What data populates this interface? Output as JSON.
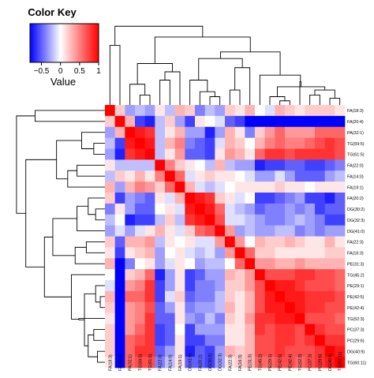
{
  "chart_data": {
    "type": "heatmap",
    "title": "",
    "color_key": {
      "title": "Color Key",
      "label": "Value",
      "range": [
        -0.8,
        1
      ],
      "ticks": [
        -0.5,
        0,
        0.5,
        1
      ],
      "tick_labels": [
        "−0.5",
        "0",
        "0.5",
        "1"
      ],
      "colors": [
        "#0000ff",
        "#ffffff",
        "#ff0000"
      ]
    },
    "columns": [
      "FA(18:3)",
      "FA(20:4)",
      "PA(32:1)",
      "TG(59:5)",
      "TG(61:5)",
      "FA(22:0)",
      "FA(14:0)",
      "FA(19:1)",
      "DG(41:0)",
      "FA(20:2)",
      "DG(30:2)",
      "DG(32:3)",
      "FA(22:3)",
      "FA(16:3)",
      "PE(31:3)",
      "TG(45:2)",
      "PE(29:1)",
      "PE(42:5)",
      "PE(42:4)",
      "TG(52:3)",
      "PC(37:3)",
      "PC(29:6)",
      "DG(40:9)",
      "TG(60:11)"
    ],
    "rows": [
      "FA(18:3)",
      "FA(20:4)",
      "PA(32:1)",
      "TG(59:5)",
      "TG(61:5)",
      "FA(22:0)",
      "FA(14:0)",
      "FA(19:1)",
      "FA(20:2)",
      "DG(30:2)",
      "DG(32:3)",
      "DG(41:0)",
      "FA(22:3)",
      "FA(16:3)",
      "PE(31:3)",
      "TG(45:2)",
      "PE(29:1)",
      "PE(42:5)",
      "PE(42:4)",
      "TG(52:3)",
      "PC(37:3)",
      "PC(29:6)",
      "DG(40:9)",
      "TG(60:11)"
    ],
    "values": [
      [
        1.0,
        0.2,
        -0.3,
        -0.2,
        -0.3,
        0.1,
        -0.2,
        0.3,
        0.2,
        -0.4,
        -0.2,
        -0.3,
        0.2,
        0.1,
        0.3,
        0.0,
        -0.1,
        0.3,
        0.2,
        0.1,
        0.2,
        0.2,
        0.2,
        0.1
      ],
      [
        0.2,
        1.0,
        0.3,
        -0.6,
        -0.7,
        -0.2,
        0.2,
        -0.3,
        -0.6,
        0.1,
        0.0,
        -0.1,
        -0.5,
        -0.6,
        -0.8,
        -0.8,
        -0.8,
        -0.8,
        -0.8,
        -0.8,
        -0.8,
        -0.8,
        -0.8,
        -0.8
      ],
      [
        -0.3,
        0.3,
        1.0,
        0.9,
        0.8,
        -0.2,
        0.1,
        0.3,
        -0.3,
        -0.3,
        -0.7,
        -0.3,
        0.3,
        0.1,
        -0.4,
        0.2,
        0.4,
        0.6,
        0.4,
        0.4,
        0.4,
        0.6,
        0.6,
        0.6
      ],
      [
        -0.2,
        -0.6,
        0.9,
        1.0,
        0.9,
        -0.2,
        0.3,
        0.5,
        -0.4,
        -0.5,
        -0.6,
        -0.1,
        0.3,
        0.2,
        0.0,
        0.3,
        0.5,
        0.6,
        0.5,
        0.5,
        0.6,
        0.7,
        0.8,
        0.7
      ],
      [
        -0.3,
        -0.7,
        0.8,
        0.9,
        1.0,
        -0.2,
        0.1,
        0.4,
        -0.5,
        -0.5,
        -0.6,
        0.1,
        0.4,
        0.3,
        0.1,
        0.6,
        0.8,
        0.8,
        0.7,
        0.8,
        0.8,
        0.8,
        0.8,
        0.7
      ],
      [
        0.1,
        -0.2,
        -0.2,
        -0.2,
        -0.2,
        1.0,
        0.5,
        0.2,
        0.1,
        0.0,
        -0.2,
        0.3,
        -0.2,
        -0.3,
        -0.3,
        -0.7,
        -0.6,
        -0.6,
        -0.5,
        -0.5,
        -0.6,
        -0.6,
        -0.5,
        -0.4
      ],
      [
        -0.2,
        0.2,
        0.1,
        0.3,
        0.1,
        0.5,
        1.0,
        0.6,
        -0.1,
        0.1,
        0.2,
        0.1,
        0.1,
        0.0,
        -0.1,
        -0.3,
        -0.3,
        -0.1,
        -0.3,
        -0.5,
        -0.5,
        -0.5,
        -0.3,
        -0.2
      ],
      [
        0.3,
        -0.3,
        0.3,
        0.5,
        0.4,
        0.2,
        0.6,
        1.0,
        0.3,
        -0.1,
        -0.2,
        -0.1,
        0.0,
        0.1,
        0.1,
        0.1,
        0.1,
        0.2,
        0.1,
        0.1,
        0.0,
        0.1,
        0.1,
        0.1
      ],
      [
        0.2,
        -0.6,
        -0.3,
        -0.4,
        -0.5,
        0.1,
        -0.1,
        0.3,
        1.0,
        0.9,
        0.8,
        0.2,
        0.1,
        -0.1,
        0.0,
        -0.6,
        -0.6,
        -0.5,
        -0.4,
        -0.3,
        -0.6,
        -0.6,
        -0.7,
        -0.5
      ],
      [
        -0.4,
        0.1,
        -0.3,
        -0.5,
        -0.5,
        0.0,
        0.1,
        -0.1,
        0.9,
        1.0,
        0.9,
        0.6,
        -0.1,
        -0.2,
        -0.3,
        -0.5,
        -0.4,
        -0.4,
        -0.3,
        -0.4,
        -0.3,
        -0.6,
        -0.5,
        -0.5
      ],
      [
        -0.2,
        0.0,
        -0.7,
        -0.6,
        -0.6,
        -0.2,
        0.2,
        -0.2,
        0.8,
        0.9,
        1.0,
        0.7,
        -0.1,
        -0.1,
        -0.2,
        -0.3,
        -0.4,
        -0.4,
        -0.3,
        -0.2,
        -0.3,
        -0.4,
        -0.6,
        -0.6
      ],
      [
        -0.3,
        -0.1,
        -0.3,
        -0.1,
        0.1,
        0.3,
        0.1,
        -0.1,
        0.2,
        0.6,
        0.7,
        1.0,
        0.4,
        -0.3,
        -0.2,
        -0.3,
        -0.3,
        -0.2,
        -0.2,
        -0.4,
        -0.3,
        -0.4,
        -0.3,
        -0.3
      ],
      [
        0.2,
        -0.5,
        0.3,
        0.3,
        0.4,
        -0.2,
        0.1,
        0.0,
        0.1,
        -0.1,
        -0.1,
        0.4,
        1.0,
        0.4,
        0.0,
        0.3,
        0.2,
        0.2,
        0.3,
        0.2,
        0.1,
        0.1,
        0.3,
        0.1
      ],
      [
        0.1,
        -0.6,
        0.1,
        0.2,
        0.3,
        -0.3,
        0.0,
        0.1,
        -0.1,
        -0.2,
        -0.1,
        -0.3,
        0.4,
        1.0,
        0.6,
        0.2,
        0.2,
        0.1,
        0.1,
        0.1,
        0.1,
        0.1,
        0.2,
        0.2
      ],
      [
        0.3,
        -0.8,
        -0.4,
        0.0,
        0.1,
        -0.3,
        -0.1,
        0.1,
        0.0,
        -0.3,
        -0.2,
        -0.2,
        0.0,
        0.6,
        1.0,
        0.4,
        0.4,
        0.3,
        0.3,
        0.4,
        0.3,
        0.3,
        0.3,
        0.3
      ],
      [
        0.0,
        -0.8,
        0.2,
        0.3,
        0.6,
        -0.7,
        -0.3,
        0.1,
        -0.6,
        -0.5,
        -0.3,
        -0.3,
        0.3,
        0.2,
        0.4,
        1.0,
        0.7,
        0.7,
        0.7,
        0.8,
        0.8,
        0.7,
        0.7,
        0.6
      ],
      [
        -0.1,
        -0.8,
        0.4,
        0.5,
        0.8,
        -0.6,
        -0.3,
        0.1,
        -0.6,
        -0.4,
        -0.4,
        -0.3,
        0.2,
        0.2,
        0.4,
        0.7,
        1.0,
        0.9,
        0.9,
        0.8,
        0.7,
        0.7,
        0.7,
        0.6
      ],
      [
        0.3,
        -0.8,
        0.6,
        0.6,
        0.8,
        -0.6,
        -0.1,
        0.2,
        -0.5,
        -0.4,
        -0.4,
        -0.2,
        0.2,
        0.1,
        0.3,
        0.7,
        0.9,
        1.0,
        0.9,
        0.9,
        0.8,
        0.8,
        0.8,
        0.7
      ],
      [
        0.2,
        -0.8,
        0.4,
        0.5,
        0.7,
        -0.5,
        -0.3,
        0.1,
        -0.4,
        -0.3,
        -0.3,
        -0.2,
        0.3,
        0.1,
        0.3,
        0.7,
        0.9,
        0.9,
        1.0,
        0.9,
        0.8,
        0.8,
        0.7,
        0.7
      ],
      [
        0.1,
        -0.8,
        0.4,
        0.5,
        0.8,
        -0.5,
        -0.5,
        0.1,
        -0.3,
        -0.4,
        -0.2,
        -0.4,
        0.2,
        0.1,
        0.4,
        0.8,
        0.8,
        0.9,
        0.9,
        1.0,
        0.7,
        0.7,
        0.7,
        0.6
      ],
      [
        0.2,
        -0.8,
        0.4,
        0.6,
        0.8,
        -0.6,
        -0.5,
        0.0,
        -0.6,
        -0.3,
        -0.3,
        -0.3,
        0.1,
        0.1,
        0.3,
        0.8,
        0.7,
        0.8,
        0.8,
        0.7,
        1.0,
        0.8,
        0.7,
        0.7
      ],
      [
        0.2,
        -0.8,
        0.6,
        0.7,
        0.8,
        -0.6,
        -0.5,
        0.1,
        -0.6,
        -0.6,
        -0.4,
        -0.4,
        0.1,
        0.1,
        0.3,
        0.7,
        0.7,
        0.8,
        0.8,
        0.7,
        0.8,
        1.0,
        0.8,
        0.8
      ],
      [
        0.2,
        -0.8,
        0.6,
        0.8,
        0.8,
        -0.5,
        -0.3,
        0.1,
        -0.7,
        -0.5,
        -0.6,
        -0.3,
        0.3,
        0.2,
        0.3,
        0.7,
        0.7,
        0.8,
        0.7,
        0.7,
        0.7,
        0.8,
        1.0,
        0.9
      ],
      [
        0.1,
        -0.8,
        0.6,
        0.7,
        0.7,
        -0.4,
        -0.2,
        0.1,
        -0.5,
        -0.5,
        -0.6,
        -0.3,
        0.1,
        0.2,
        0.3,
        0.6,
        0.6,
        0.7,
        0.7,
        0.6,
        0.7,
        0.8,
        0.9,
        1.0
      ]
    ],
    "column_dendrogram": [
      [
        12,
        13,
        0.18
      ],
      [
        0,
        1,
        0.72
      ],
      [
        3,
        4,
        0.12
      ],
      [
        2,
        26,
        0.25
      ],
      [
        5,
        6,
        0.3
      ],
      [
        28,
        7,
        0.4
      ],
      [
        27,
        29,
        0.5
      ],
      [
        10,
        11,
        0.1
      ],
      [
        9,
        31,
        0.16
      ],
      [
        8,
        32,
        0.3
      ],
      [
        24,
        14,
        0.45
      ],
      [
        33,
        34,
        0.56
      ],
      [
        17,
        18,
        0.05
      ],
      [
        16,
        36,
        0.1
      ],
      [
        20,
        21,
        0.12
      ],
      [
        22,
        23,
        0.08
      ],
      [
        38,
        39,
        0.18
      ],
      [
        37,
        40,
        0.22
      ],
      [
        19,
        41,
        0.28
      ],
      [
        15,
        42,
        0.36
      ],
      [
        43,
        35,
        0.64
      ],
      [
        30,
        44,
        0.82
      ],
      [
        25,
        45,
        0.95
      ]
    ],
    "row_dendrogram": [
      [
        0,
        1,
        0.75
      ],
      [
        3,
        4,
        0.12
      ],
      [
        2,
        25,
        0.25
      ],
      [
        5,
        6,
        0.3
      ],
      [
        27,
        7,
        0.4
      ],
      [
        26,
        28,
        0.52
      ],
      [
        9,
        10,
        0.1
      ],
      [
        8,
        30,
        0.18
      ],
      [
        31,
        11,
        0.3
      ],
      [
        12,
        13,
        0.2
      ],
      [
        33,
        14,
        0.32
      ],
      [
        32,
        34,
        0.56
      ],
      [
        17,
        18,
        0.05
      ],
      [
        16,
        36,
        0.1
      ],
      [
        20,
        21,
        0.12
      ],
      [
        22,
        23,
        0.08
      ],
      [
        38,
        39,
        0.18
      ],
      [
        37,
        40,
        0.22
      ],
      [
        19,
        41,
        0.28
      ],
      [
        15,
        42,
        0.36
      ],
      [
        43,
        35,
        0.65
      ],
      [
        29,
        44,
        0.85
      ],
      [
        24,
        45,
        0.95
      ]
    ]
  }
}
